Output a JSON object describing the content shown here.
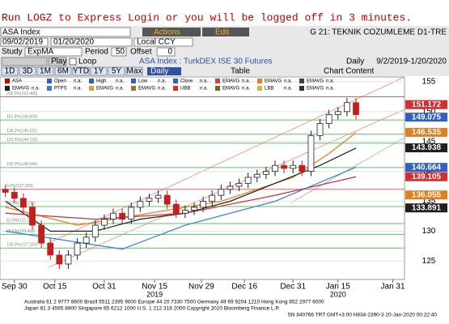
{
  "alert": "Run LOGZ to Express Login or you will be logged off in 3 minutes.",
  "toolbar": {
    "security": "ASA Index",
    "actions": "Actions",
    "edit": "Edit",
    "function": "G 21: TEKNIK COZUMLEME D1-TRE",
    "start_date": "09/02/2019",
    "end_date": "01/20/2020",
    "currency": "Local CCY",
    "study_label": "Study",
    "study": "ExpMA",
    "period_label": "Period",
    "period": "50",
    "offset_label": "Offset",
    "offset": "0",
    "play": "Play",
    "loop": "Loop",
    "description": "ASA Index : TurkDEX ISE 30 Futures",
    "frequency": "Daily",
    "range": "9/2/2019-1/20/2020",
    "periods": [
      "1D",
      "3D",
      "1M",
      "6M",
      "YTD",
      "1Y",
      "5Y",
      "Max"
    ],
    "period_select": "Daily",
    "table": "Table",
    "chart_content": "Chart Content"
  },
  "legend": [
    [
      {
        "name": "ASA",
        "color": "#c00000"
      },
      {
        "name": "Open",
        "value": "n.a.",
        "color": "#3060c0"
      },
      {
        "name": "High",
        "value": "n.a.",
        "color": "#3060c0"
      },
      {
        "name": "Low",
        "value": "n.a.",
        "color": "#3060c0"
      },
      {
        "name": "Close",
        "value": "n.a.",
        "color": "#3060c0"
      },
      {
        "name": "EMAVG",
        "value": "n.a.",
        "color": "#d04040"
      },
      {
        "name": "EMAVG",
        "value": "n.a.",
        "color": "#e08020"
      },
      {
        "name": "EMAVG",
        "value": "n.a.",
        "color": "#404040"
      }
    ],
    [
      {
        "name": "EMAVG",
        "value": "n.a.",
        "color": "#202020"
      },
      {
        "name": "PTPS",
        "value": "n.a.",
        "color": "#3080d0"
      },
      {
        "name": "EMAVG",
        "value": "n.a.",
        "color": "#e0a030"
      },
      {
        "name": "EMAVG",
        "value": "n.a.",
        "color": "#a07030"
      },
      {
        "name": "UBB",
        "value": "n.a.",
        "color": "#d03030"
      },
      {
        "name": "EMAVG",
        "value": "n.a.",
        "color": "#806020"
      },
      {
        "name": "LBB",
        "value": "n.a.",
        "color": "#c0c040"
      },
      {
        "name": "EMAVG",
        "value": "n.a.",
        "color": "#303030"
      }
    ]
  ],
  "chart_data": {
    "type": "candlestick",
    "open": [
      137,
      136.5,
      135.5,
      134,
      131,
      128,
      126,
      124.5,
      126,
      128,
      129,
      131,
      132,
      133,
      132,
      134,
      135,
      135.5,
      136,
      134.5,
      133,
      133.5,
      134,
      135,
      136,
      137,
      137.5,
      138,
      139,
      139.5,
      140,
      141,
      140.5,
      141,
      140,
      146,
      148,
      149.5,
      150,
      151.5
    ],
    "high": [
      137.8,
      137.3,
      136.3,
      134.8,
      131.8,
      128.8,
      126.8,
      126.8,
      128.8,
      129.8,
      131.8,
      132.8,
      133.8,
      133.8,
      134.8,
      135.8,
      136.3,
      136.8,
      136.8,
      135.3,
      134.3,
      134.8,
      135.8,
      136.8,
      137.8,
      138.3,
      138.8,
      139.8,
      140.3,
      140.8,
      141.8,
      141.8,
      141.8,
      141.8,
      146.8,
      148.8,
      150.3,
      150.8,
      152.3,
      152.3
    ],
    "low": [
      135.7,
      134.7,
      133.2,
      130.2,
      127.2,
      125.2,
      123.7,
      123.7,
      125.2,
      127.2,
      128.2,
      130.2,
      131.2,
      131.2,
      131.2,
      133.2,
      134.2,
      134.7,
      133.7,
      132.2,
      132.2,
      132.7,
      133.2,
      134.2,
      135.2,
      136.2,
      136.7,
      137.2,
      138.2,
      138.7,
      139.2,
      139.7,
      139.7,
      139.2,
      139.2,
      145.2,
      147.2,
      148.7,
      149.2,
      148.7
    ],
    "close": [
      136.5,
      135.5,
      134,
      131,
      128,
      126,
      124.5,
      126,
      128,
      129,
      131,
      132,
      133,
      132,
      134,
      135,
      135.5,
      136,
      134.5,
      133,
      133.5,
      134,
      135,
      136,
      137,
      137.5,
      138,
      139,
      139.5,
      140,
      141,
      140.5,
      141,
      140,
      146,
      148,
      149.5,
      150,
      151.5,
      149.5
    ],
    "xlim": [
      -0.6,
      44.4
    ],
    "xticks": [
      {
        "value": 1,
        "label": "Sep 30"
      },
      {
        "value": 5.5,
        "label": "Oct 15"
      },
      {
        "value": 11,
        "label": "Oct 31"
      },
      {
        "value": 16.6,
        "label": "Nov 15"
      },
      {
        "value": 21.8,
        "label": "Nov 29"
      },
      {
        "value": 26.6,
        "label": "Dec 16"
      },
      {
        "value": 32,
        "label": "Dec 31"
      },
      {
        "value": 37,
        "label": "Jan 15"
      },
      {
        "value": 43.1,
        "label": "Jan 31"
      }
    ],
    "years": [
      {
        "value": 16.6,
        "label": "2019"
      },
      {
        "value": 37,
        "label": "2020"
      }
    ],
    "ylim": [
      122.6,
      155.8
    ],
    "yticks": [
      125,
      130,
      135,
      140,
      145,
      150,
      155
    ],
    "levels": [
      {
        "value": 152.48,
        "label": "200.0%(152.480)",
        "color": "#e06060"
      },
      {
        "value": 148.604,
        "label": "161.8%(148.604)",
        "color": "#60c060"
      },
      {
        "value": 146.211,
        "label": "138.2%(146.211)",
        "color": "#60c060"
      },
      {
        "value": 144.722,
        "label": "123.6%(144.722)",
        "color": "#60c060"
      },
      {
        "value": 140.644,
        "label": "100.0%(140.644)",
        "color": "#60c060"
      },
      {
        "value": 137,
        "label": "0.0%(137.000)",
        "color": "#e06060"
      },
      {
        "value": 134.12,
        "label": "38.2%(134.120)",
        "color": "#60c060"
      },
      {
        "value": 131.272,
        "label": "61.8%(131.272)",
        "color": "#60c060"
      },
      {
        "value": 129.452,
        "label": "78.6%(129.452)",
        "color": "#60c060"
      },
      {
        "value": 127.169,
        "label": "100.0%(127.169)",
        "color": "#60c060"
      }
    ],
    "lines": [
      {
        "color": "#e08020",
        "x": [
          0,
          8,
          16,
          24,
          32,
          36,
          39
        ],
        "values": [
          134,
          131,
          133,
          135,
          139,
          143,
          146.5
        ]
      },
      {
        "color": "#202020",
        "x": [
          0,
          5,
          10,
          15,
          20,
          25,
          30,
          35,
          39
        ],
        "values": [
          135,
          130,
          130,
          132,
          133,
          135,
          138,
          141,
          143.9
        ]
      },
      {
        "color": "#d03030",
        "x": [
          0,
          10,
          20,
          30,
          39
        ],
        "values": [
          133,
          132,
          133,
          136,
          139.1
        ]
      },
      {
        "color": "#3080d0",
        "x": [
          0,
          13,
          20,
          30,
          39
        ],
        "values": [
          130,
          127,
          131,
          135,
          140.7
        ]
      }
    ],
    "price_labels": [
      {
        "value": 151.172,
        "color": "#d03030"
      },
      {
        "value": 149.075,
        "color": "#3060c0"
      },
      {
        "value": 146.535,
        "color": "#e08020"
      },
      {
        "value": 143.938,
        "color": "#202020"
      },
      {
        "value": 140.664,
        "color": "#3060c0"
      },
      {
        "value": 139.105,
        "color": "#d03030"
      },
      {
        "value": 136.055,
        "color": "#e08020"
      },
      {
        "value": 133.891,
        "color": "#202020"
      }
    ]
  },
  "footer": [
    "Australia 61 2 9777 8600 Brazil 5511 2395 9000 Europe 44 20 7330 7500 Germany 49 69 9204 1210 Hong Kong 852 2977 6000",
    "Japan 81 3 4565 8900      Singapore 65 6212 1000      U.S. 1 212 318 2000      Copyright 2020 Bloomberg Finance L.P.",
    "SN 840766 TRT  GMT+3:00 H834-2390-3 20-Jan-2020 00:22:40"
  ]
}
